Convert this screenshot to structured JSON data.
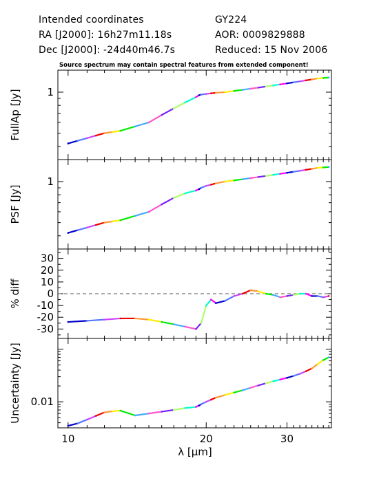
{
  "header": {
    "line1_left": "Intended coordinates",
    "line2_left": "RA  [J2000]: 16h27m11.18s",
    "line3_left": "Dec [J2000]: -24d40m46.7s",
    "line1_right": "GY224",
    "line2_right": "AOR:  0009829888",
    "line3_right": "Reduced: 15 Nov 2006",
    "warning": "Source spectrum may contain spectral features from extended component!"
  },
  "chart_data": [
    {
      "type": "line",
      "panel": "fullap",
      "ylabel": "FullAp [Jy]",
      "yscale": "log",
      "ylim": [
        0.32,
        1.45
      ],
      "yticks": [
        {
          "v": 1,
          "label": "1"
        }
      ],
      "x": [
        10,
        10.5,
        11,
        11.5,
        12,
        12.5,
        13,
        14,
        15,
        16,
        17,
        18,
        19,
        19.3,
        19.5,
        20,
        20.5,
        21,
        22,
        23,
        24,
        25,
        26,
        27,
        28,
        29,
        30,
        31,
        32,
        33,
        34,
        35,
        36,
        37
      ],
      "y": [
        0.42,
        0.44,
        0.46,
        0.48,
        0.5,
        0.51,
        0.52,
        0.56,
        0.6,
        0.68,
        0.76,
        0.84,
        0.92,
        0.95,
        0.96,
        0.97,
        0.98,
        0.99,
        1.0,
        1.02,
        1.04,
        1.06,
        1.08,
        1.1,
        1.12,
        1.14,
        1.16,
        1.18,
        1.2,
        1.22,
        1.24,
        1.26,
        1.27,
        1.28
      ]
    },
    {
      "type": "line",
      "panel": "psf",
      "ylabel": "PSF [Jy]",
      "yscale": "log",
      "ylim": [
        0.32,
        1.45
      ],
      "yticks": [
        {
          "v": 1,
          "label": "1"
        }
      ],
      "x": [
        10,
        10.5,
        11,
        11.5,
        12,
        12.5,
        13,
        14,
        15,
        16,
        17,
        18,
        19,
        19.3,
        19.5,
        20,
        20.5,
        21,
        22,
        23,
        24,
        25,
        26,
        27,
        28,
        29,
        30,
        31,
        32,
        33,
        34,
        35,
        36,
        37
      ],
      "y": [
        0.42,
        0.44,
        0.46,
        0.48,
        0.5,
        0.51,
        0.52,
        0.56,
        0.6,
        0.68,
        0.76,
        0.82,
        0.86,
        0.88,
        0.9,
        0.93,
        0.95,
        0.97,
        1.0,
        1.02,
        1.04,
        1.06,
        1.08,
        1.1,
        1.12,
        1.14,
        1.16,
        1.18,
        1.2,
        1.22,
        1.24,
        1.26,
        1.27,
        1.28
      ]
    },
    {
      "type": "line",
      "panel": "diff",
      "ylabel": "% diff",
      "yscale": "linear",
      "ylim": [
        -38,
        38
      ],
      "yticks": [
        {
          "v": 30,
          "label": "30"
        },
        {
          "v": 20,
          "label": "20"
        },
        {
          "v": 10,
          "label": "10"
        },
        {
          "v": 0,
          "label": "0"
        },
        {
          "v": -10,
          "label": "-10"
        },
        {
          "v": -20,
          "label": "-20"
        },
        {
          "v": -30,
          "label": "-30"
        }
      ],
      "zero_line": true,
      "x": [
        10,
        11,
        12,
        13,
        14,
        15,
        16,
        17,
        18,
        19,
        19.5,
        20,
        20.5,
        21,
        22,
        23,
        24,
        25,
        26,
        27,
        28,
        29,
        30,
        31,
        32,
        33,
        34,
        35,
        36,
        37
      ],
      "y": [
        -24,
        -23,
        -22,
        -21,
        -21,
        -22,
        -24,
        -26,
        -28,
        -30,
        -25,
        -10,
        -5,
        -8,
        -6,
        -2,
        0,
        3,
        2,
        0,
        -1,
        -3,
        -2,
        -1,
        0,
        0,
        -2,
        -2,
        -3,
        -2
      ]
    },
    {
      "type": "line",
      "panel": "uncertainty",
      "ylabel": "Uncertainty [Jy]",
      "yscale": "log",
      "ylim": [
        0.0032,
        0.16
      ],
      "yticks": [
        {
          "v": 0.01,
          "label": "0.01"
        }
      ],
      "x": [
        10,
        10.5,
        11,
        11.5,
        12,
        12.5,
        13,
        14,
        15,
        16,
        17,
        18,
        19,
        19.3,
        19.5,
        20,
        20.5,
        21,
        22,
        23,
        24,
        25,
        26,
        27,
        28,
        29,
        30,
        31,
        32,
        33,
        34,
        35,
        36,
        37
      ],
      "y": [
        0.0035,
        0.0039,
        0.0046,
        0.0054,
        0.0063,
        0.0066,
        0.0068,
        0.0055,
        0.006,
        0.0065,
        0.007,
        0.0076,
        0.008,
        0.0085,
        0.009,
        0.01,
        0.011,
        0.012,
        0.0135,
        0.015,
        0.0165,
        0.0185,
        0.0205,
        0.0225,
        0.0245,
        0.0265,
        0.0285,
        0.031,
        0.034,
        0.038,
        0.043,
        0.052,
        0.062,
        0.07
      ]
    }
  ],
  "xaxis": {
    "label": "λ [μm]",
    "scale": "log",
    "xlim": [
      9.5,
      37.5
    ],
    "ticks": [
      {
        "v": 10,
        "label": "10"
      },
      {
        "v": 20,
        "label": "20"
      },
      {
        "v": 30,
        "label": "30"
      }
    ]
  },
  "segment_colors": [
    "#0000cc",
    "#5577ff",
    "#cc44ff",
    "#ee0000",
    "#ff9933",
    "#ffee00",
    "#00ee00",
    "#44aaff",
    "#ff55cc",
    "#7722ff",
    "#aaff66",
    "#00ffcc",
    "#ff00ff"
  ]
}
